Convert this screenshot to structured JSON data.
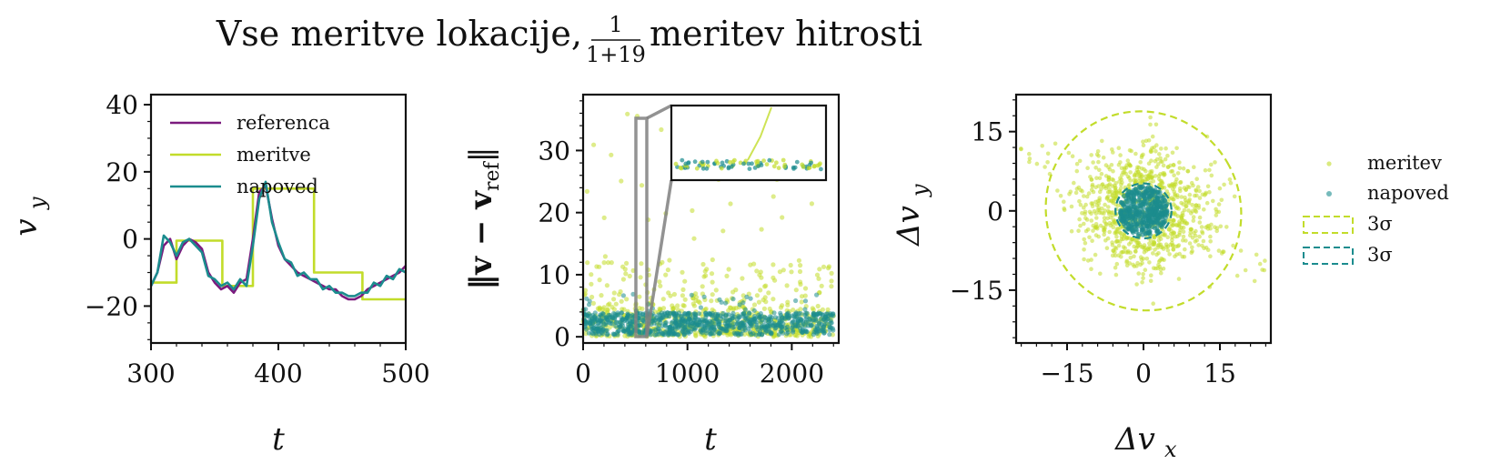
{
  "figure_title": {
    "main": "Vse meritve lokacije,",
    "frac_num": "1",
    "frac_den": "1+19",
    "rest": "meritev hitrosti"
  },
  "colors": {
    "reference": "#7b1a7e",
    "measurement": "#c2dc2a",
    "prediction": "#1b8c8e",
    "zoom_box": "#808080",
    "axes": "#111111"
  },
  "chart_data": [
    {
      "type": "line",
      "xlabel": "t",
      "ylabel_base": "v",
      "ylabel_sub": "y",
      "xlim": [
        300,
        500
      ],
      "ylim": [
        -31,
        43
      ],
      "xticks": [
        300,
        400,
        500
      ],
      "yticks": [
        -20,
        0,
        20,
        40
      ],
      "legend_position": "top-left",
      "series": [
        {
          "name": "referenca",
          "x": [
            300,
            305,
            310,
            315,
            320,
            325,
            330,
            335,
            340,
            345,
            350,
            355,
            360,
            365,
            370,
            375,
            380,
            385,
            390,
            395,
            400,
            405,
            410,
            415,
            420,
            425,
            430,
            435,
            440,
            445,
            450,
            455,
            460,
            465,
            470,
            475,
            480,
            485,
            490,
            495,
            500
          ],
          "values": [
            -14,
            -10,
            -2,
            0,
            -6,
            -2,
            0,
            -1,
            -3,
            -10,
            -13,
            -15,
            -14,
            -16,
            -13,
            -12,
            0,
            14,
            16,
            6,
            -2,
            -6,
            -8,
            -10,
            -11,
            -12,
            -13,
            -14,
            -15,
            -15,
            -17,
            -18,
            -18,
            -17,
            -15,
            -14,
            -13,
            -12,
            -11,
            -10,
            -8
          ]
        },
        {
          "name": "meritve",
          "x": [
            300,
            320,
            320,
            356,
            356,
            380,
            380,
            428,
            428,
            466,
            466,
            500
          ],
          "values": [
            -13,
            -13,
            -0.5,
            -0.5,
            -14,
            -14,
            15,
            15,
            -10,
            -10,
            -18,
            -18
          ]
        },
        {
          "name": "napoved",
          "x": [
            300,
            305,
            310,
            315,
            320,
            325,
            330,
            335,
            340,
            345,
            350,
            355,
            360,
            365,
            370,
            375,
            380,
            385,
            390,
            395,
            400,
            405,
            410,
            415,
            420,
            425,
            430,
            435,
            440,
            445,
            450,
            455,
            460,
            465,
            470,
            475,
            480,
            485,
            490,
            495,
            500
          ],
          "values": [
            -14,
            -10,
            1,
            -1,
            -5,
            -1,
            0,
            -2,
            -4,
            -11,
            -12,
            -14,
            -13,
            -15,
            -12,
            -14,
            -2,
            12,
            17,
            5,
            -1,
            -6,
            -7,
            -11,
            -10,
            -12,
            -12,
            -15,
            -14,
            -16,
            -16,
            -17,
            -17,
            -16,
            -16,
            -13,
            -14,
            -11,
            -12,
            -9,
            -10
          ]
        }
      ]
    },
    {
      "type": "scatter",
      "xlabel": "t",
      "ylabel": "‖v − v_ref‖",
      "ylabel_main": "‖v − v",
      "ylabel_sub": "ref",
      "ylabel_tail": "‖",
      "xlim": [
        0,
        2450
      ],
      "ylim": [
        -1,
        39
      ],
      "xticks": [
        0,
        1000,
        2000
      ],
      "yticks": [
        0,
        10,
        20,
        30
      ],
      "zoom_region": {
        "x": [
          500,
          600
        ],
        "y": [
          0,
          35
        ]
      },
      "inset": {
        "ylim": [
          0,
          35
        ],
        "shape": "band near zero with occasional spikes"
      },
      "series": [
        {
          "name": "meritev",
          "summary": "points 0–10 with frequent spikes up to ~37, t = 0–2400"
        },
        {
          "name": "napoved",
          "summary": "dense band 0–4, occasional points up to ~7, t = 0–2400"
        }
      ]
    },
    {
      "type": "scatter",
      "xlabel_base": "Δv",
      "xlabel_sub": "x",
      "ylabel_base": "Δv",
      "ylabel_sub": "y",
      "xlim": [
        -25,
        25
      ],
      "ylim": [
        -25,
        22
      ],
      "xticks": [
        -15,
        0,
        15
      ],
      "yticks": [
        -15,
        0,
        15
      ],
      "legend_position": "right",
      "legend": [
        {
          "label": "meritev",
          "marker": "point"
        },
        {
          "label": "napoved",
          "marker": "point"
        },
        {
          "label": "3σ",
          "marker": "dashed-ellipse"
        },
        {
          "label": "3σ",
          "marker": "dashed-ellipse"
        }
      ],
      "ellipses": [
        {
          "series": "meritve",
          "center": [
            0,
            0
          ],
          "rx": 19,
          "ry": 19,
          "angle_deg": -30
        },
        {
          "series": "napoved",
          "center": [
            0,
            0
          ],
          "rx": 5.5,
          "ry": 5.2,
          "angle_deg": 0
        }
      ]
    }
  ]
}
